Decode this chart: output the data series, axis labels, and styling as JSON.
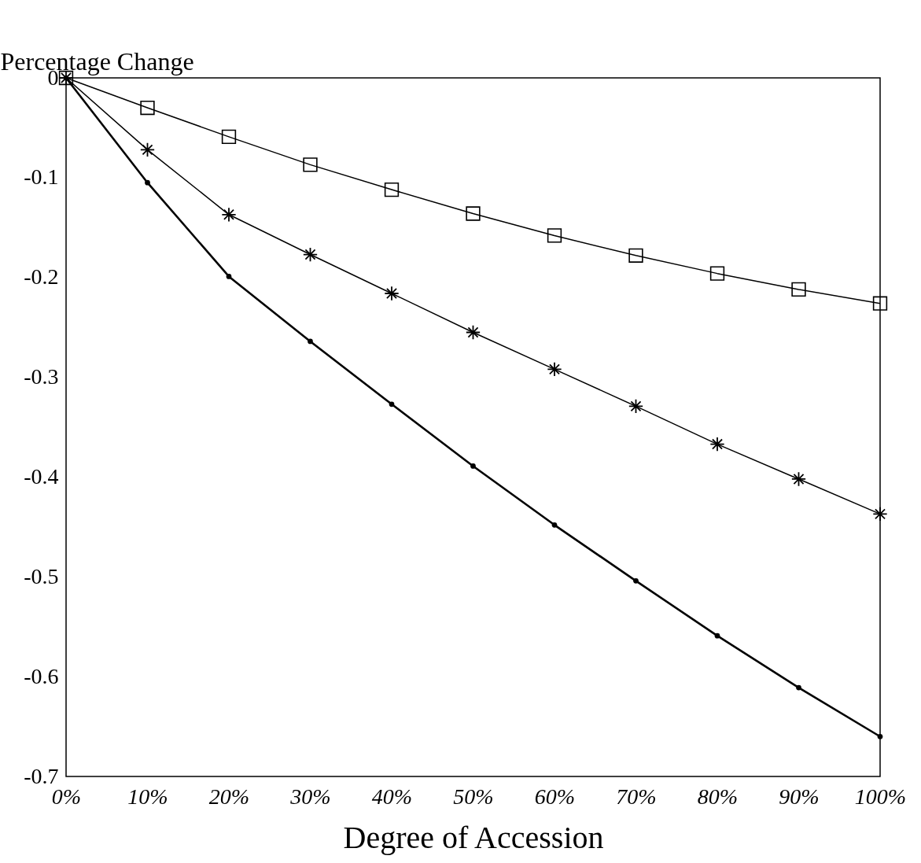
{
  "chart_data": {
    "type": "line",
    "xlabel": "Degree of Accession",
    "ylabel": "Percentage Change",
    "categories": [
      "0%",
      "10%",
      "20%",
      "30%",
      "40%",
      "50%",
      "60%",
      "70%",
      "80%",
      "90%",
      "100%"
    ],
    "ylim": [
      -0.7,
      0
    ],
    "yticks": [
      0,
      -0.1,
      -0.2,
      -0.3,
      -0.4,
      -0.5,
      -0.6,
      -0.7
    ],
    "grid": false,
    "line_style": "solid",
    "series": [
      {
        "color": "#000000",
        "marker": "square",
        "values": [
          0,
          -0.03,
          -0.059,
          -0.087,
          -0.112,
          -0.136,
          -0.158,
          -0.178,
          -0.196,
          -0.212,
          -0.226
        ]
      },
      {
        "color": "#000000",
        "marker": "cross",
        "values": [
          0,
          -0.072,
          -0.137,
          -0.177,
          -0.216,
          -0.255,
          -0.292,
          -0.329,
          -0.367,
          -0.402,
          -0.437
        ]
      },
      {
        "color": "#000000",
        "marker": "circle",
        "values": [
          0,
          -0.105,
          -0.199,
          -0.264,
          -0.327,
          -0.389,
          -0.448,
          -0.504,
          -0.559,
          -0.611,
          -0.66
        ]
      }
    ]
  }
}
